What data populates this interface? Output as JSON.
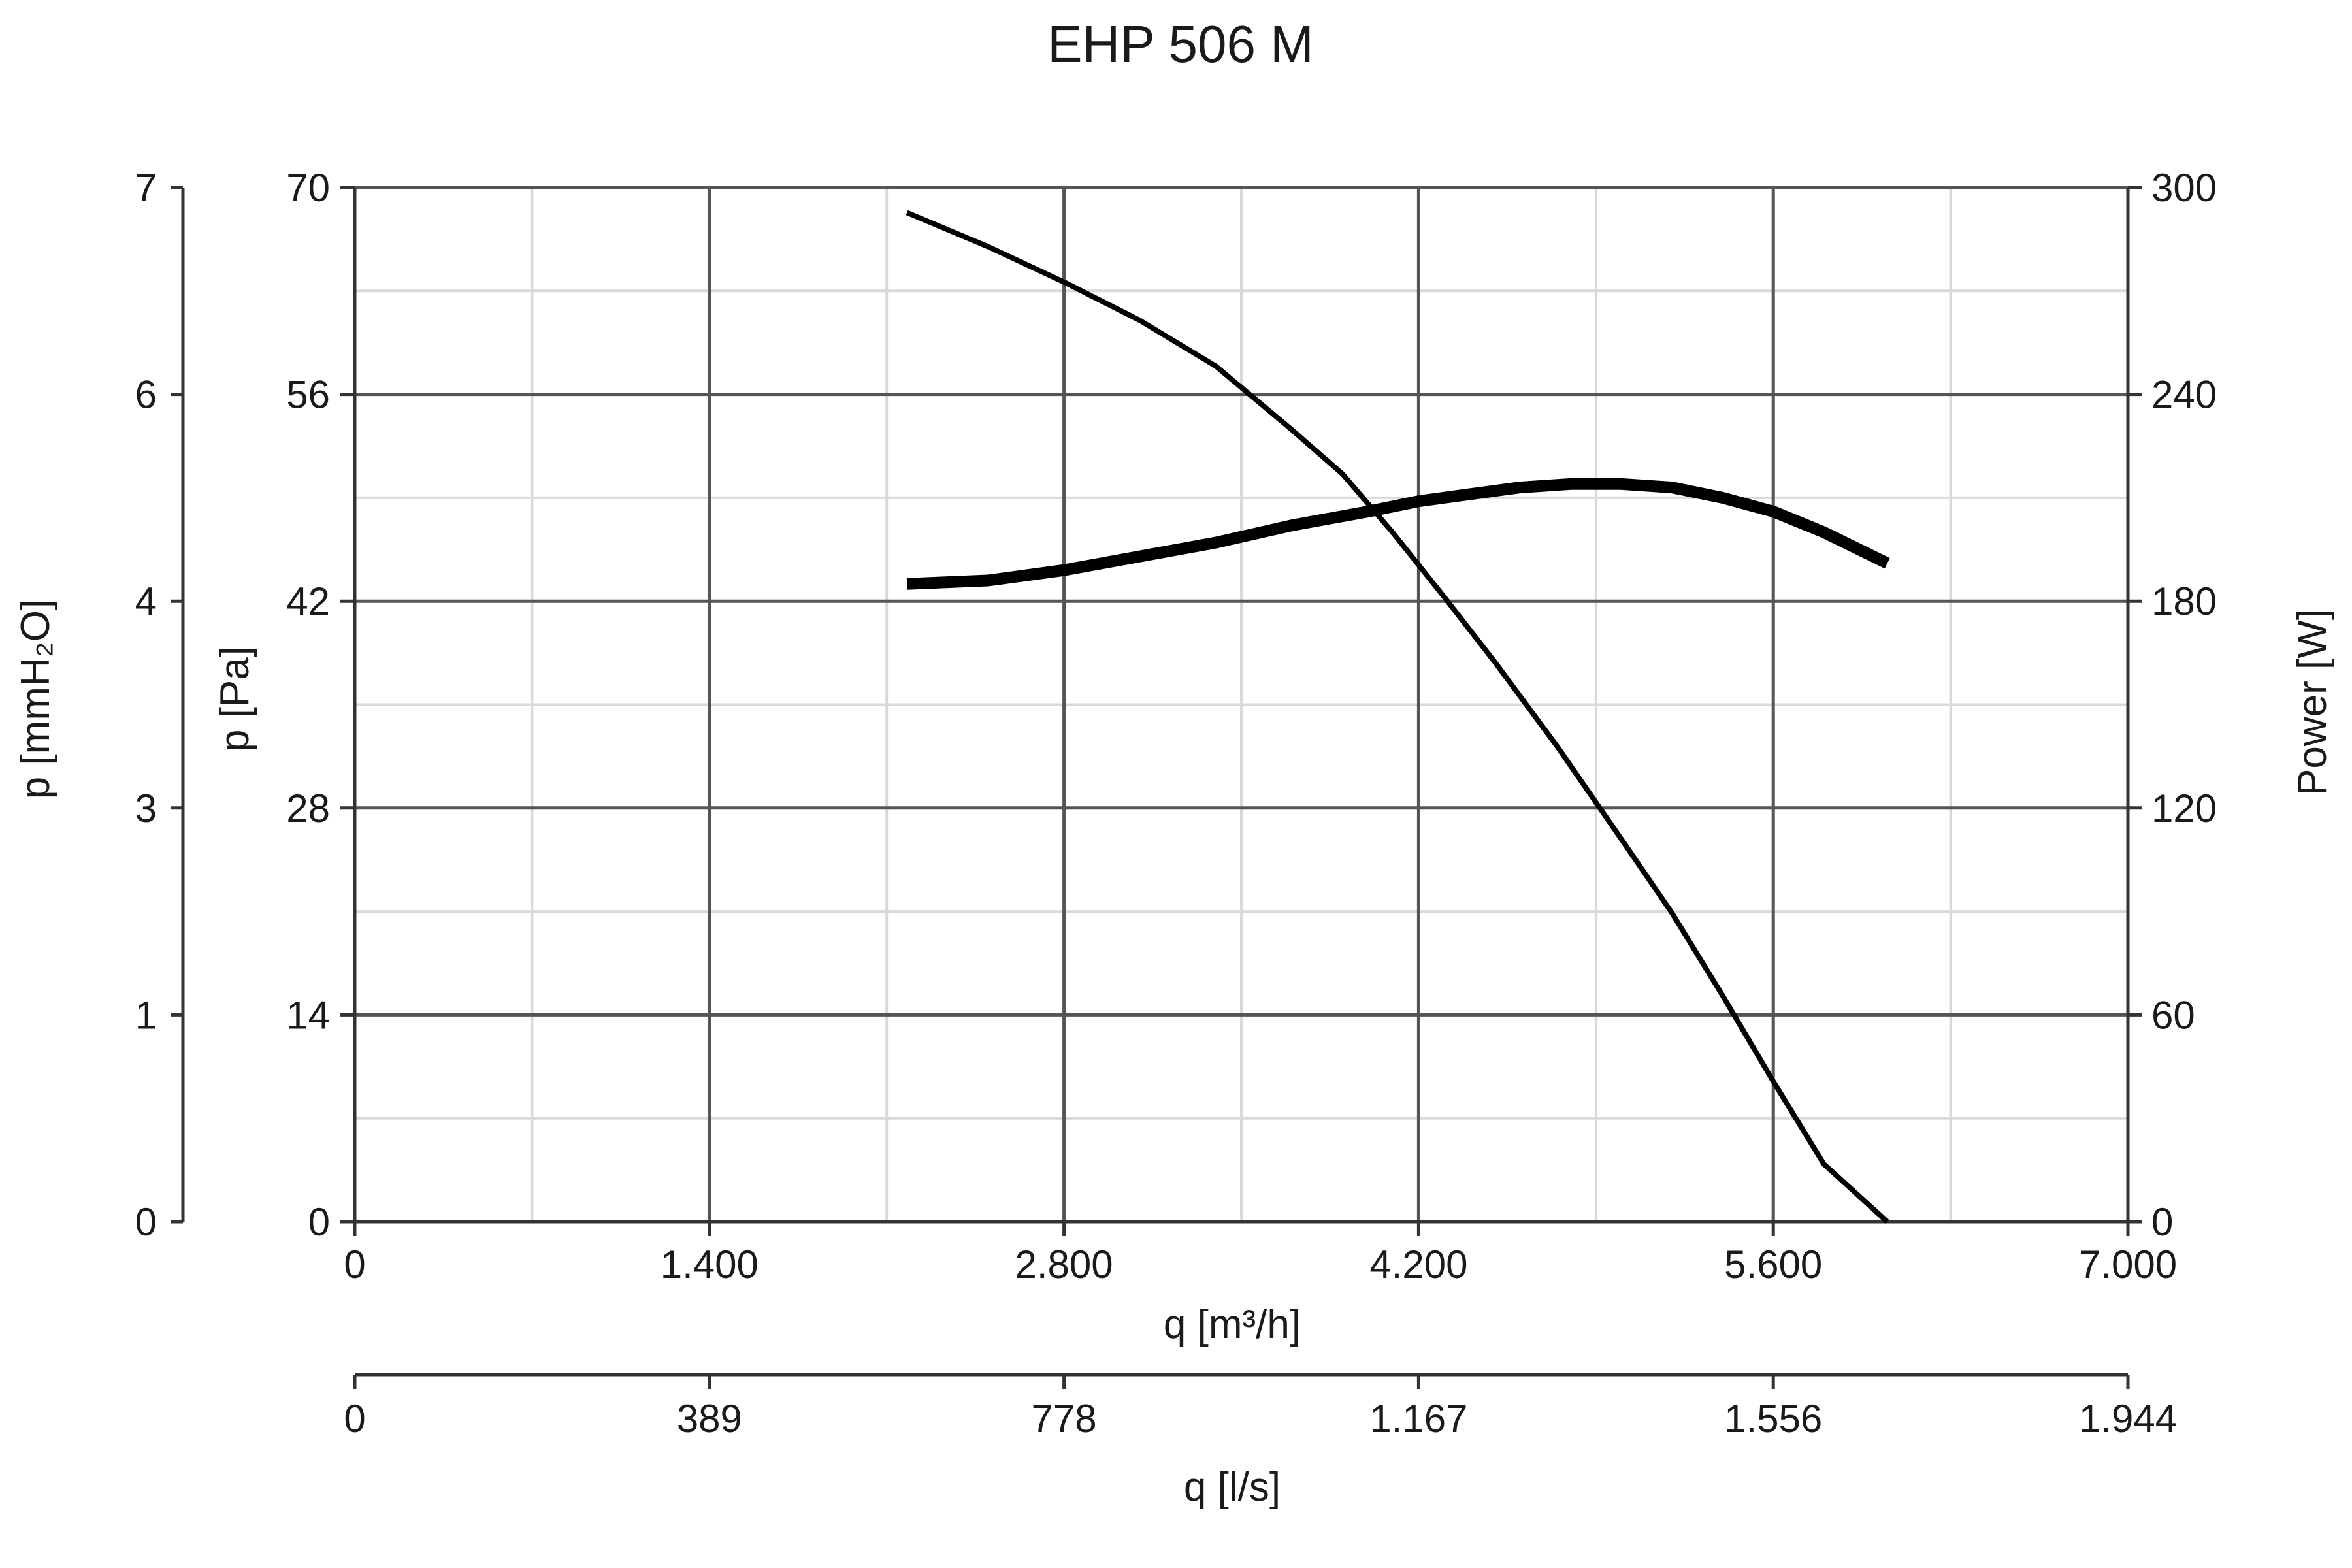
{
  "chart_data": {
    "type": "line",
    "title": "EHP 506 M",
    "x_axis": {
      "label": "q [m³/h]",
      "range": [
        0,
        7000
      ],
      "ticks": [
        0,
        1400,
        2800,
        4200,
        5600,
        7000
      ],
      "tick_labels": [
        "0",
        "1.400",
        "2.800",
        "4.200",
        "5.600",
        "7.000"
      ]
    },
    "x2_axis": {
      "label": "q [l/s]",
      "range": [
        0,
        1944
      ],
      "tick_labels": [
        "0",
        "389",
        "778",
        "1.167",
        "1.556",
        "1.944"
      ]
    },
    "y_axis": {
      "label": "p [Pa]",
      "range": [
        0,
        70
      ],
      "ticks": [
        0,
        14,
        28,
        42,
        56,
        70
      ],
      "tick_labels": [
        "0",
        "14",
        "28",
        "42",
        "56",
        "70"
      ]
    },
    "y_axis_outer": {
      "label": "p [mmH₂O]",
      "range": [
        0,
        7
      ],
      "tick_labels": [
        "0",
        "1",
        "3",
        "4",
        "6",
        "7"
      ]
    },
    "y_axis_right": {
      "label": "Power [W]",
      "range": [
        0,
        300
      ],
      "ticks": [
        0,
        60,
        120,
        180,
        240,
        300
      ],
      "tick_labels": [
        "0",
        "60",
        "120",
        "180",
        "240",
        "300"
      ]
    },
    "grid": true,
    "series": [
      {
        "axis": "left",
        "color": "#000000",
        "points": [
          [
            2180,
            68.3
          ],
          [
            2500,
            66.0
          ],
          [
            2800,
            63.6
          ],
          [
            3100,
            61.0
          ],
          [
            3400,
            57.9
          ],
          [
            3700,
            53.6
          ],
          [
            3900,
            50.6
          ],
          [
            4100,
            46.6
          ],
          [
            4300,
            42.3
          ],
          [
            4500,
            37.9
          ],
          [
            4750,
            32.1
          ],
          [
            5000,
            25.9
          ],
          [
            5200,
            20.9
          ],
          [
            5400,
            15.3
          ],
          [
            5600,
            9.5
          ],
          [
            5800,
            3.9
          ],
          [
            6050,
            0.0
          ]
        ]
      },
      {
        "axis": "right",
        "color": "#000000",
        "points": [
          [
            2180,
            185
          ],
          [
            2500,
            186
          ],
          [
            2800,
            189
          ],
          [
            3100,
            193
          ],
          [
            3400,
            197
          ],
          [
            3700,
            202
          ],
          [
            4000,
            206
          ],
          [
            4200,
            209
          ],
          [
            4400,
            211
          ],
          [
            4600,
            213
          ],
          [
            4800,
            214
          ],
          [
            5000,
            214
          ],
          [
            5200,
            213
          ],
          [
            5400,
            210
          ],
          [
            5600,
            206
          ],
          [
            5800,
            200
          ],
          [
            6050,
            191
          ]
        ]
      }
    ]
  }
}
